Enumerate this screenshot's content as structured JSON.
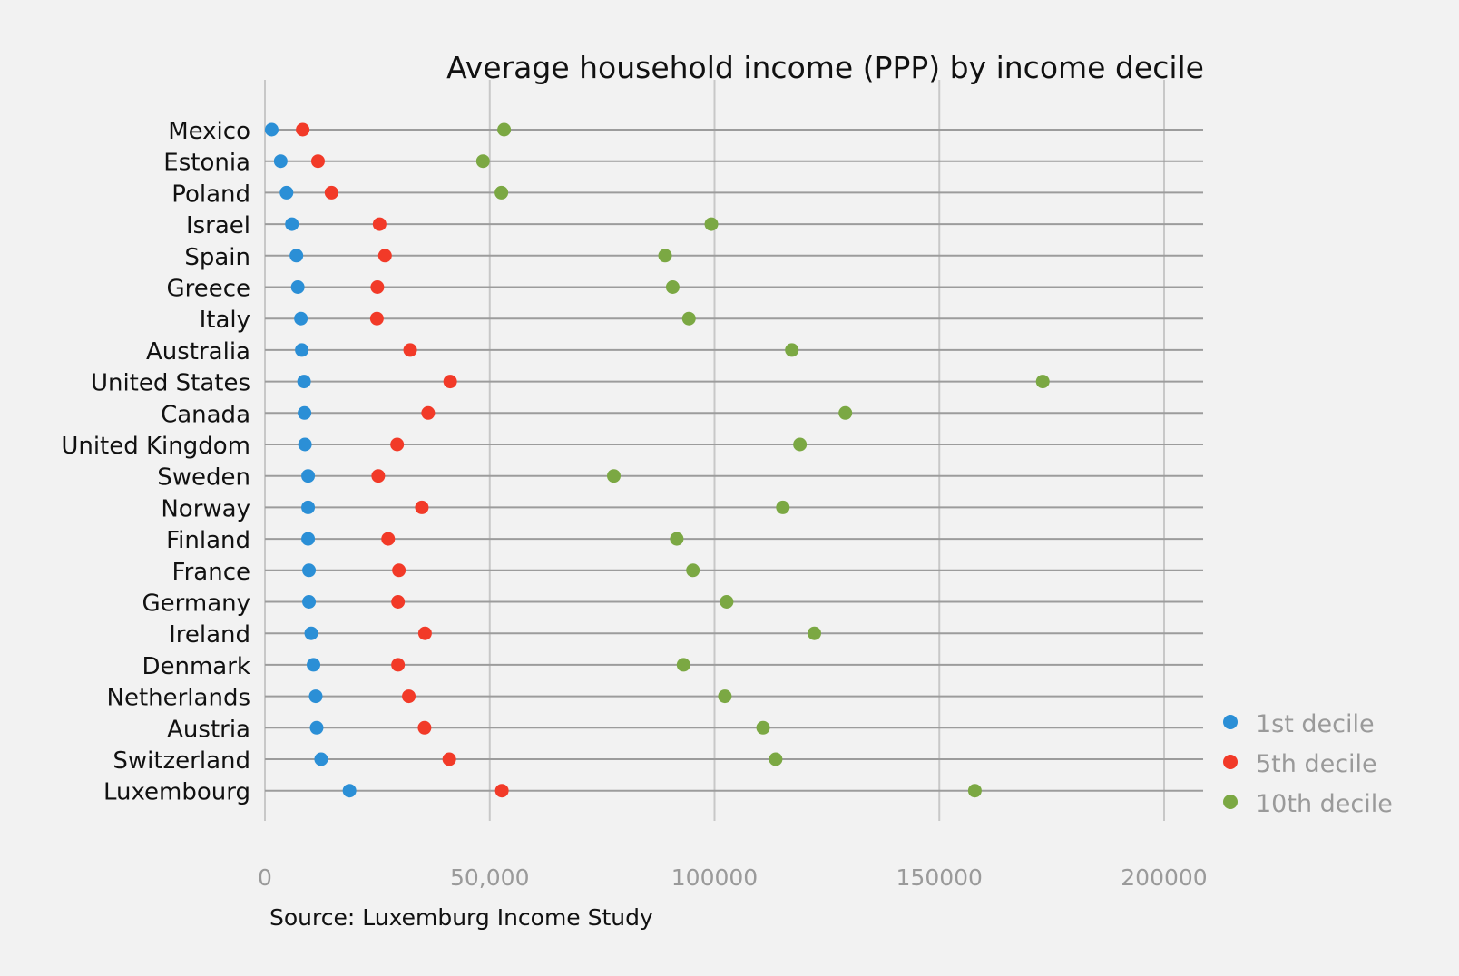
{
  "chart_data": {
    "type": "scatter",
    "title": "Average household income (PPP) by income decile",
    "source": "Source: Luxemburg Income Study",
    "xlim": [
      0,
      210000
    ],
    "x_ticks": [
      {
        "value": 0,
        "label": "0"
      },
      {
        "value": 50000,
        "label": "50,000"
      },
      {
        "value": 100000,
        "label": "100000"
      },
      {
        "value": 150000,
        "label": "150000"
      },
      {
        "value": 200000,
        "label": "200000"
      }
    ],
    "categories": [
      "Mexico",
      "Estonia",
      "Poland",
      "Israel",
      "Spain",
      "Greece",
      "Italy",
      "Australia",
      "United States",
      "Canada",
      "United Kingdom",
      "Sweden",
      "Norway",
      "Finland",
      "France",
      "Germany",
      "Ireland",
      "Denmark",
      "Netherlands",
      "Austria",
      "Switzerland",
      "Luxembourg"
    ],
    "series": [
      {
        "name": "1st decile",
        "color": "#2b8fd6",
        "values": [
          1500,
          3500,
          4800,
          6000,
          7000,
          7300,
          8000,
          8200,
          8700,
          8800,
          8900,
          9600,
          9600,
          9600,
          9800,
          9800,
          10300,
          10800,
          11300,
          11500,
          12500,
          18800
        ]
      },
      {
        "name": "5th decile",
        "color": "#f23a28",
        "values": [
          8400,
          11800,
          14800,
          25500,
          26700,
          25000,
          24900,
          32300,
          41200,
          36300,
          29400,
          25200,
          34900,
          27400,
          29800,
          29600,
          35600,
          29600,
          32000,
          35500,
          41000,
          52700
        ]
      },
      {
        "name": "10th decile",
        "color": "#7ba843",
        "values": [
          53200,
          48500,
          52600,
          99300,
          89000,
          90700,
          94300,
          117200,
          173000,
          129100,
          119000,
          77600,
          115200,
          91600,
          95200,
          102700,
          122200,
          93100,
          102300,
          110800,
          113600,
          157900
        ]
      }
    ],
    "legend": {
      "position": "bottom-right",
      "entries": [
        "1st decile",
        "5th decile",
        "10th decile"
      ]
    }
  }
}
